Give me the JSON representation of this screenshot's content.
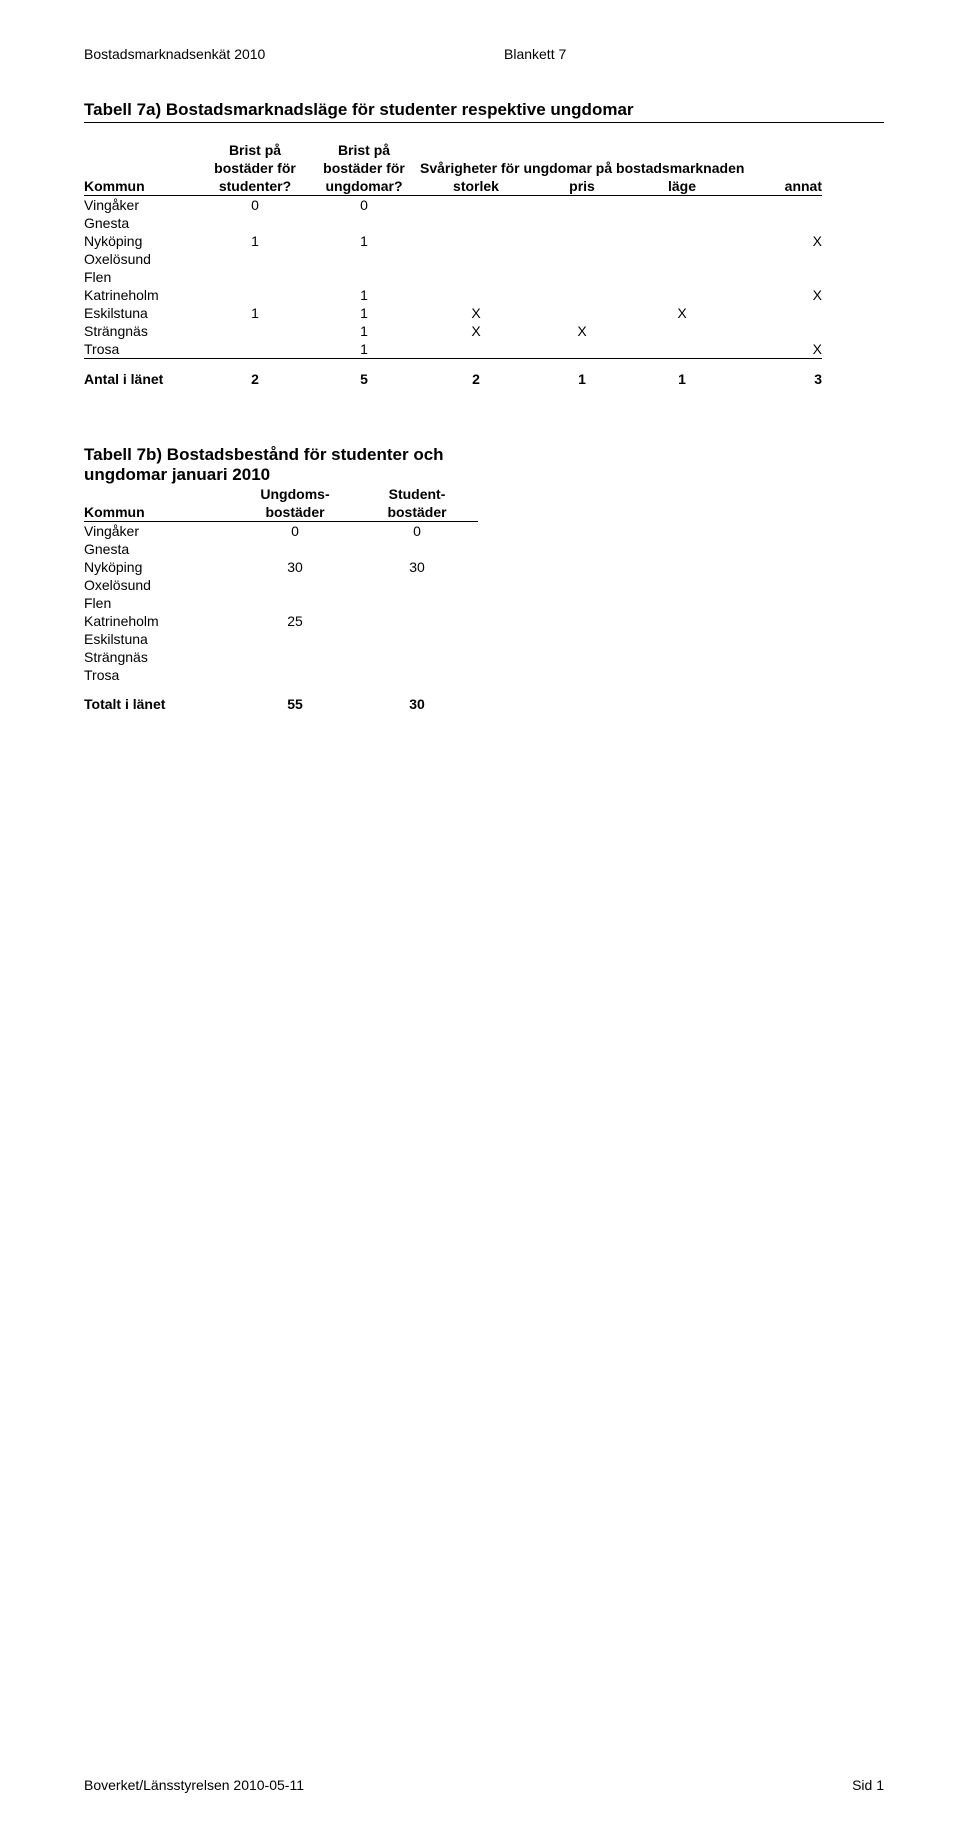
{
  "header": {
    "left": "Bostadsmarknadsenkät 2010",
    "right": "Blankett 7"
  },
  "table7a": {
    "title": "Tabell 7a) Bostadsmarknadsläge för studenter respektive ungdomar",
    "head": {
      "kommun": "Kommun",
      "bostStud_l1": "Brist på",
      "bostStud_l2": "bostäder för",
      "bostStud_l3": "studenter?",
      "bostUng_l1": "Brist på",
      "bostUng_l2": "bostäder för",
      "bostUng_l3": "ungdomar?",
      "svar_top": "Svårigheter för ungdomar på bostadsmarknaden",
      "storlek": "storlek",
      "pris": "pris",
      "lage": "läge",
      "annat": "annat"
    },
    "rows": [
      {
        "k": "Vingåker",
        "bs": "0",
        "bu": "0",
        "st": "",
        "pr": "",
        "la": "",
        "an": ""
      },
      {
        "k": "Gnesta",
        "bs": "",
        "bu": "",
        "st": "",
        "pr": "",
        "la": "",
        "an": ""
      },
      {
        "k": "Nyköping",
        "bs": "1",
        "bu": "1",
        "st": "",
        "pr": "",
        "la": "",
        "an": "X"
      },
      {
        "k": "Oxelösund",
        "bs": "",
        "bu": "",
        "st": "",
        "pr": "",
        "la": "",
        "an": ""
      },
      {
        "k": "Flen",
        "bs": "",
        "bu": "",
        "st": "",
        "pr": "",
        "la": "",
        "an": ""
      },
      {
        "k": "Katrineholm",
        "bs": "",
        "bu": "1",
        "st": "",
        "pr": "",
        "la": "",
        "an": "X"
      },
      {
        "k": "Eskilstuna",
        "bs": "1",
        "bu": "1",
        "st": "X",
        "pr": "",
        "la": "X",
        "an": ""
      },
      {
        "k": "Strängnäs",
        "bs": "",
        "bu": "1",
        "st": "X",
        "pr": "X",
        "la": "",
        "an": ""
      },
      {
        "k": "Trosa",
        "bs": "",
        "bu": "1",
        "st": "",
        "pr": "",
        "la": "",
        "an": "X"
      }
    ],
    "sum": {
      "label": "Antal i länet",
      "bs": "2",
      "bu": "5",
      "st": "2",
      "pr": "1",
      "la": "1",
      "an": "3"
    }
  },
  "table7b": {
    "title": "Tabell 7b) Bostadsbestånd för studenter och ungdomar januari 2010",
    "head": {
      "kommun": "Kommun",
      "ung_l1": "Ungdoms-",
      "ung_l2": "bostäder",
      "stu_l1": "Student-",
      "stu_l2": "bostäder"
    },
    "rows": [
      {
        "k": "Vingåker",
        "u": "0",
        "s": "0"
      },
      {
        "k": "Gnesta",
        "u": "",
        "s": ""
      },
      {
        "k": "Nyköping",
        "u": "30",
        "s": "30"
      },
      {
        "k": "Oxelösund",
        "u": "",
        "s": ""
      },
      {
        "k": "Flen",
        "u": "",
        "s": ""
      },
      {
        "k": "Katrineholm",
        "u": "25",
        "s": ""
      },
      {
        "k": "Eskilstuna",
        "u": "",
        "s": ""
      },
      {
        "k": "Strängnäs",
        "u": "",
        "s": ""
      },
      {
        "k": "Trosa",
        "u": "",
        "s": ""
      }
    ],
    "sum": {
      "label": "Totalt i länet",
      "u": "55",
      "s": "30"
    }
  },
  "footer": {
    "left": "Boverket/Länsstyrelsen 2010-05-11",
    "right": "Sid 1"
  }
}
